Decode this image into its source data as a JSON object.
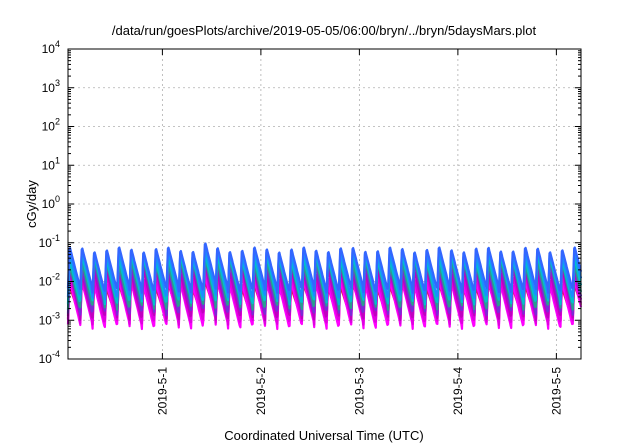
{
  "chart_data": {
    "type": "line",
    "title": "/data/run/goesPlots/archive/2019-05-05/06:00/bryn/../bryn/5daysMars.plot",
    "xlabel": "Coordinated Universal Time (UTC)",
    "ylabel": "cGy/day",
    "yscale": "log",
    "ylim": [
      0.0001,
      10000
    ],
    "y_ticks": [
      {
        "value": 0.0001,
        "base": "10",
        "exp": "-4"
      },
      {
        "value": 0.001,
        "base": "10",
        "exp": "-3"
      },
      {
        "value": 0.01,
        "base": "10",
        "exp": "-2"
      },
      {
        "value": 0.1,
        "base": "10",
        "exp": "-1"
      },
      {
        "value": 1,
        "base": "10",
        "exp": "0"
      },
      {
        "value": 10,
        "base": "10",
        "exp": "1"
      },
      {
        "value": 100,
        "base": "10",
        "exp": "2"
      },
      {
        "value": 1000,
        "base": "10",
        "exp": "3"
      },
      {
        "value": 10000,
        "base": "10",
        "exp": "4"
      }
    ],
    "xlim": [
      "2019-04-30 01:00",
      "2019-05-05 06:00"
    ],
    "x_ticks": [
      {
        "value": "2019-05-01 00:00",
        "label": "2019-5-1"
      },
      {
        "value": "2019-05-02 00:00",
        "label": "2019-5-2"
      },
      {
        "value": "2019-05-03 00:00",
        "label": "2019-5-3"
      },
      {
        "value": "2019-05-04 00:00",
        "label": "2019-5-4"
      },
      {
        "value": "2019-05-05 00:00",
        "label": "2019-5-5"
      }
    ],
    "grid": true,
    "sawtooth": {
      "period_hours": 3,
      "series": [
        {
          "color": "#3366ff",
          "peak": 0.075,
          "trough": 0.006
        },
        {
          "color": "#1a8cff",
          "peak": 0.06,
          "trough": 0.004
        },
        {
          "color": "#00bfd0",
          "peak": 0.045,
          "trough": 0.003
        },
        {
          "color": "#2a9d8f",
          "peak": 0.035,
          "trough": 0.0022
        },
        {
          "color": "#7a2bd6",
          "peak": 0.028,
          "trough": 0.0016
        },
        {
          "color": "#c000c0",
          "peak": 0.02,
          "trough": 0.0012
        },
        {
          "color": "#e000e0",
          "peak": 0.014,
          "trough": 0.0009
        },
        {
          "color": "#ff00ff",
          "peak": 0.01,
          "trough": 0.0007
        },
        {
          "color": "#cc2244",
          "peak": 0.008,
          "trough": 0.0011
        }
      ]
    }
  }
}
